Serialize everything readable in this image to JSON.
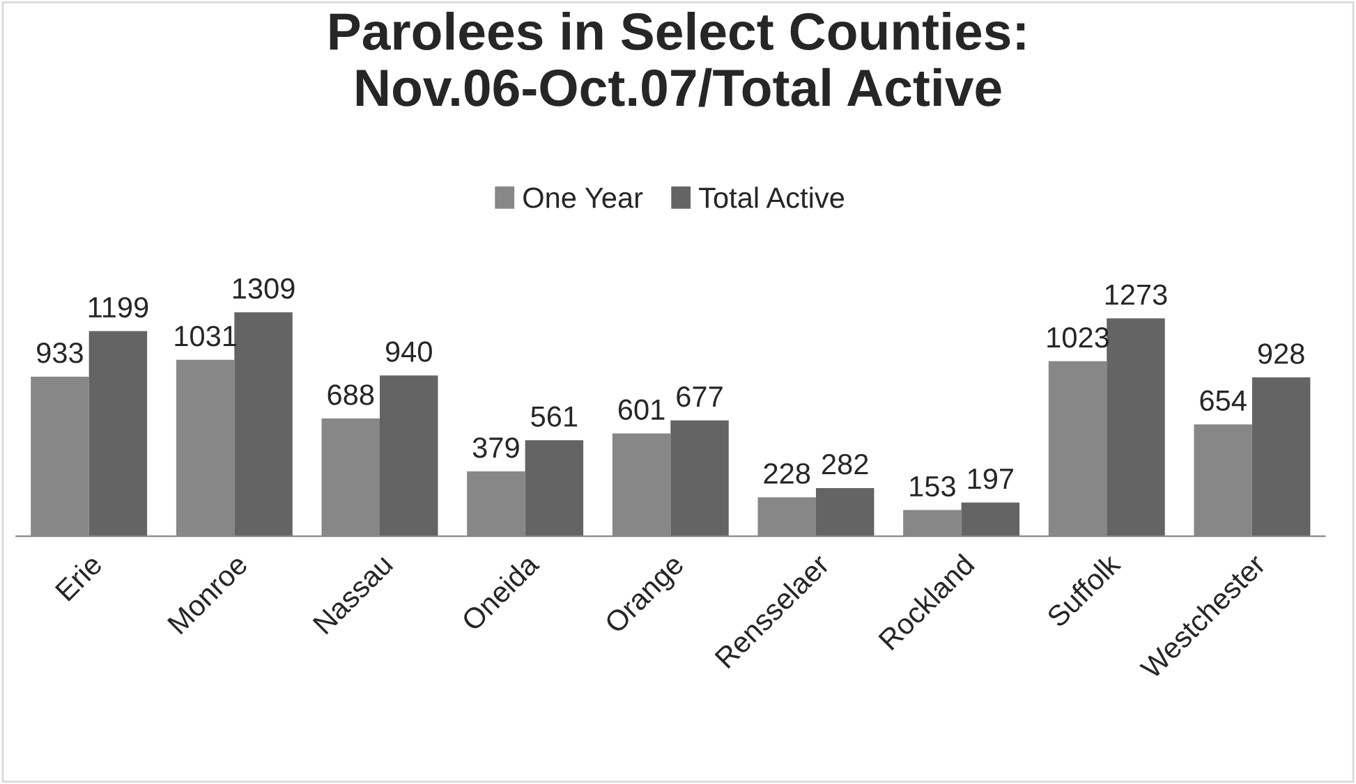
{
  "chart_data": {
    "type": "bar",
    "title": "Parolees in Select Counties:\nNov.06-Oct.07/Total Active",
    "categories": [
      "Erie",
      "Monroe",
      "Nassau",
      "Oneida",
      "Orange",
      "Rensselaer",
      "Rockland",
      "Suffolk",
      "Westchester"
    ],
    "series": [
      {
        "name": "One Year",
        "color": "#878787",
        "values": [
          933,
          1031,
          688,
          379,
          601,
          228,
          153,
          1023,
          654
        ]
      },
      {
        "name": "Total Active",
        "color": "#646464",
        "values": [
          1199,
          1309,
          940,
          561,
          677,
          282,
          197,
          1273,
          928
        ]
      }
    ],
    "data_labels": true,
    "legend": "top",
    "grid": false,
    "tick_labels": "x"
  }
}
